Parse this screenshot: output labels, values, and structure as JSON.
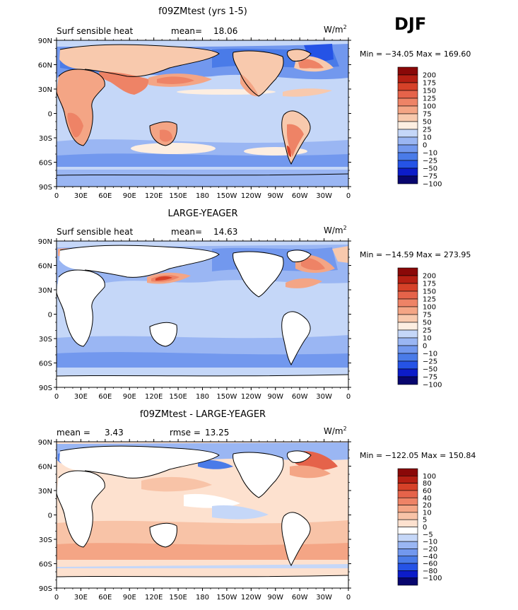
{
  "season": "DJF",
  "units_base": "W/m",
  "units_exp": "2",
  "lat_labels": [
    "90N",
    "60N",
    "30N",
    "0",
    "30S",
    "60S",
    "90S"
  ],
  "lon_labels": [
    "0",
    "30E",
    "60E",
    "90E",
    "120E",
    "150E",
    "180",
    "150W",
    "120W",
    "90W",
    "60W",
    "30W",
    "0"
  ],
  "colors": {
    "abs": [
      "#08066e",
      "#0c1cc9",
      "#2553e6",
      "#4a7be8",
      "#7298ee",
      "#9ab6f3",
      "#c5d7f8",
      "#fdeee1",
      "#f8c9ad",
      "#f4a585",
      "#ee8366",
      "#e5634a",
      "#d64128",
      "#b51f13",
      "#8a0808"
    ],
    "diff": [
      "#08066e",
      "#0c1cc9",
      "#2553e6",
      "#4a7be8",
      "#7298ee",
      "#9ab6f3",
      "#c5d7f8",
      "#ffffff",
      "#fde1cf",
      "#f8c3a7",
      "#f4a585",
      "#ee8366",
      "#e5634a",
      "#d64128",
      "#b51f13",
      "#8a0808"
    ],
    "land": "#ffffff",
    "coast": "#000000"
  },
  "panels": [
    {
      "title": "f09ZMtest (yrs 1-5)",
      "variable": "Surf sensible heat",
      "stat1_label": "mean=",
      "stat1_value": "18.06",
      "stat2_label": "",
      "stat2_value": "",
      "min_max": "Min = −34.05 Max = 169.60",
      "colorbar_labels": [
        "200",
        "175",
        "150",
        "125",
        "100",
        "75",
        "50",
        "25",
        "10",
        "0",
        "−10",
        "−25",
        "−50",
        "−75",
        "−100"
      ],
      "palette": "abs"
    },
    {
      "title": "LARGE-YEAGER",
      "variable": "Surf sensible heat",
      "stat1_label": "mean=",
      "stat1_value": "14.63",
      "stat2_label": "",
      "stat2_value": "",
      "min_max": "Min = −14.59 Max = 273.95",
      "colorbar_labels": [
        "200",
        "175",
        "150",
        "125",
        "100",
        "75",
        "50",
        "25",
        "10",
        "0",
        "−10",
        "−25",
        "−50",
        "−75",
        "−100"
      ],
      "palette": "abs"
    },
    {
      "title": "f09ZMtest - LARGE-YEAGER",
      "variable": "",
      "stat1_label": "mean =",
      "stat1_value": "3.43",
      "stat2_label": "rmse =",
      "stat2_value": "13.25",
      "min_max": "Min = −122.05 Max = 150.84",
      "colorbar_labels": [
        "100",
        "80",
        "60",
        "40",
        "20",
        "10",
        "5",
        "0",
        "−5",
        "−10",
        "−20",
        "−40",
        "−60",
        "−80",
        "−100"
      ],
      "palette": "diff"
    }
  ]
}
